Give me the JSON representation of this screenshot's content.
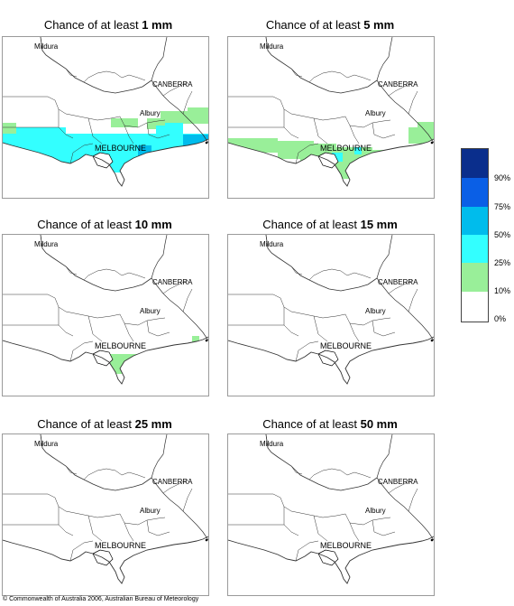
{
  "panels": [
    {
      "prefix": "Chance of at least ",
      "amount": "1 mm",
      "level": "heavy"
    },
    {
      "prefix": "Chance of at least ",
      "amount": "5 mm",
      "level": "medium"
    },
    {
      "prefix": "Chance of at least ",
      "amount": "10 mm",
      "level": "light"
    },
    {
      "prefix": "Chance of at least ",
      "amount": "15 mm",
      "level": "none"
    },
    {
      "prefix": "Chance of at least ",
      "amount": "25 mm",
      "level": "none"
    },
    {
      "prefix": "Chance of at least ",
      "amount": "50 mm",
      "level": "none"
    }
  ],
  "cities": {
    "mildura": "Mildura",
    "canberra": "CANBERRA",
    "albury": "Albury",
    "melbourne": "MELBOURNE"
  },
  "legend": {
    "labels": [
      "90%",
      "75%",
      "50%",
      "25%",
      "10%",
      "0%"
    ],
    "colors": [
      "#0a2e8c",
      "#0a5fe6",
      "#00bcec",
      "#33ffff",
      "#99ef99",
      "#ffffff"
    ]
  },
  "copyright": "© Commonwealth of Australia 2006, Australian Bureau of Meteorology"
}
